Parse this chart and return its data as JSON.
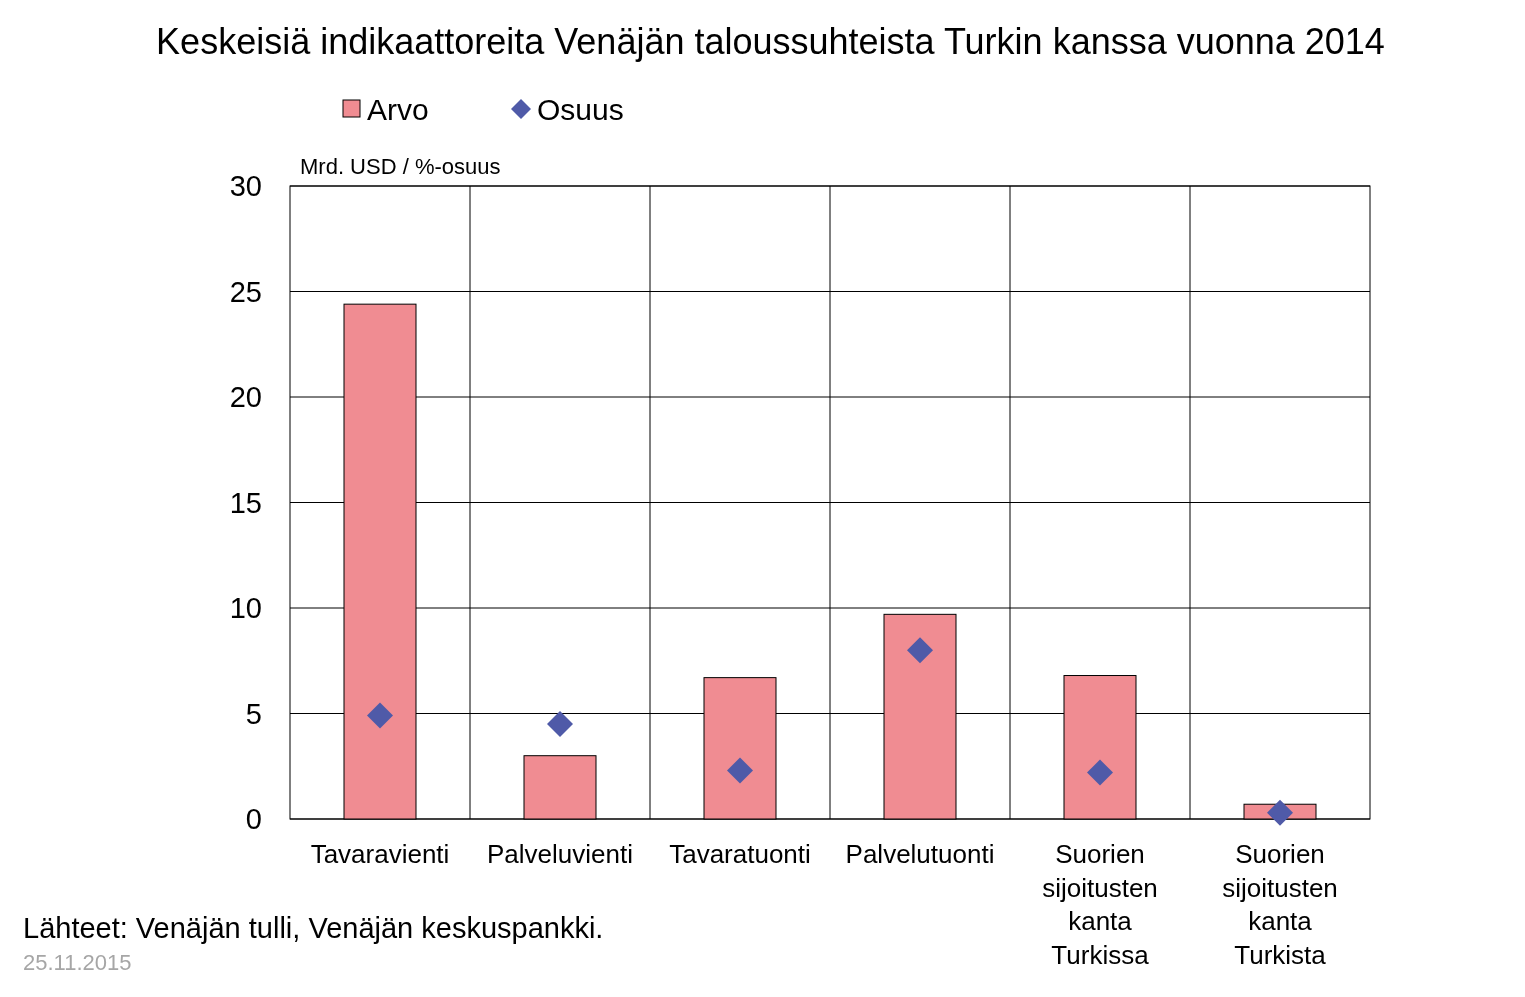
{
  "chart_data": {
    "type": "bar",
    "title": "Keskeisiä indikaattoreita Venäjän taloussuhteista Turkin kanssa vuonna 2014",
    "ylabel": "Mrd. USD / %-osuus",
    "categories": [
      "Tavaravienti",
      "Palveluvienti",
      "Tavaratuonti",
      "Palvelutuonti",
      "Suorien sijoitusten kanta Turkissa",
      "Suorien sijoitusten kanta Turkista"
    ],
    "series": [
      {
        "name": "Arvo",
        "color": "#f08c92",
        "values": [
          24.4,
          3.0,
          6.7,
          9.7,
          6.8,
          0.7
        ]
      },
      {
        "name": "Osuus",
        "type": "scatter",
        "marker": "diamond",
        "color": "#4f5aa8",
        "values": [
          4.9,
          4.5,
          2.3,
          8.0,
          2.2,
          0.3
        ]
      }
    ],
    "ylim": [
      0,
      30
    ],
    "yticks": [
      0,
      5,
      10,
      15,
      20,
      25,
      30
    ],
    "grid": true,
    "legend": "top",
    "annotations": [
      "Lähteet: Venäjän tulli, Venäjän keskuspankki.",
      "25.11.2015"
    ]
  }
}
